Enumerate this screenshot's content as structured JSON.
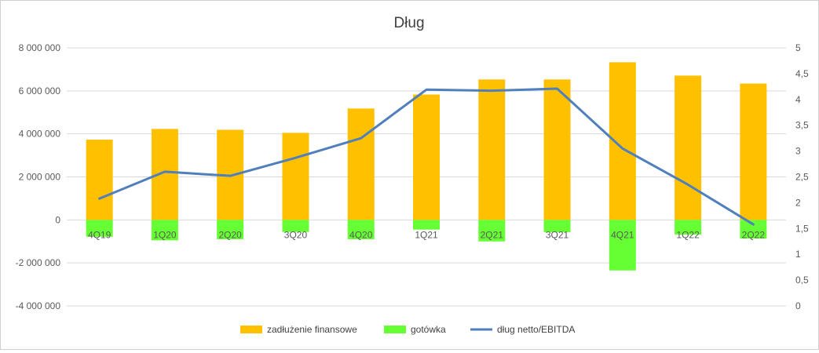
{
  "chart_data": {
    "type": "bar",
    "title": "Dług",
    "categories": [
      "4Q19",
      "1Q20",
      "2Q20",
      "3Q20",
      "4Q20",
      "1Q21",
      "2Q21",
      "3Q21",
      "4Q21",
      "1Q22",
      "2Q22"
    ],
    "series": [
      {
        "name": "zadłużenie finansowe",
        "type": "bar",
        "axis": "left",
        "color": "#FFC000",
        "values": [
          3730000,
          4230000,
          4190000,
          4050000,
          5180000,
          5830000,
          6530000,
          6530000,
          7330000,
          6710000,
          6340000
        ]
      },
      {
        "name": "gotówka",
        "type": "bar",
        "axis": "left",
        "color": "#66FF33",
        "values": [
          -780000,
          -950000,
          -900000,
          -560000,
          -900000,
          -450000,
          -1000000,
          -570000,
          -2350000,
          -680000,
          -870000
        ]
      },
      {
        "name": "dług netto/EBITDA",
        "type": "line",
        "axis": "right",
        "color": "#4F7FBC",
        "values": [
          2.08,
          2.6,
          2.52,
          2.87,
          3.25,
          4.19,
          4.17,
          4.21,
          3.05,
          2.35,
          1.58
        ]
      }
    ],
    "y_left": {
      "ylim": [
        -4000000,
        8000000
      ],
      "ticks": [
        8000000,
        6000000,
        4000000,
        2000000,
        0,
        -2000000,
        -4000000
      ],
      "tick_labels": [
        "8 000 000",
        "6 000 000",
        "4 000 000",
        "2 000 000",
        "0",
        "-2 000 000",
        "-4 000 000"
      ]
    },
    "y_right": {
      "ylim": [
        0,
        5
      ],
      "ticks": [
        5,
        4.5,
        4,
        3.5,
        3,
        2.5,
        2,
        1.5,
        1,
        0.5,
        0
      ],
      "tick_labels": [
        "5",
        "4,5",
        "4",
        "3,5",
        "3",
        "2,5",
        "2",
        "1,5",
        "1",
        "0,5",
        "0"
      ]
    },
    "grid": true,
    "legend_position": "bottom"
  }
}
